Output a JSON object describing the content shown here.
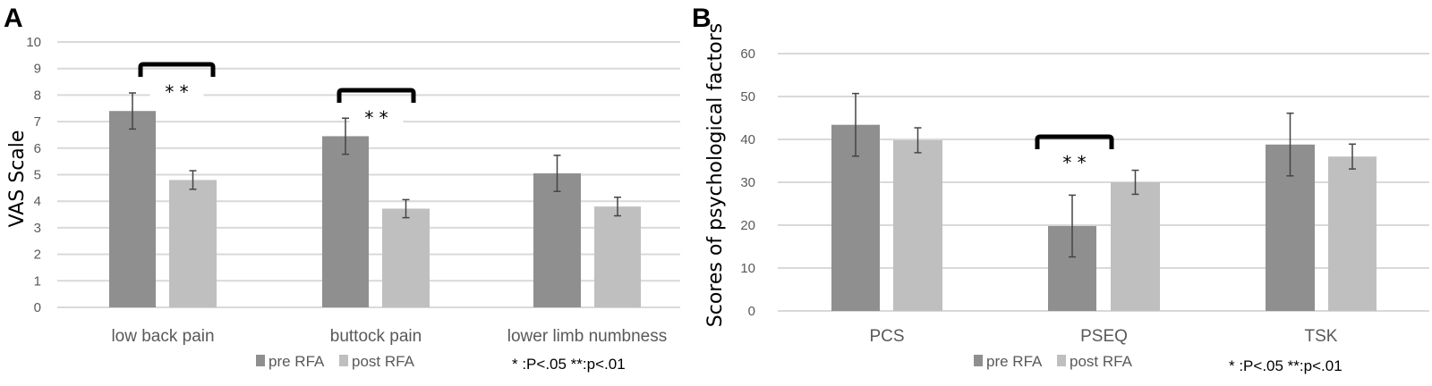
{
  "chart_data": [
    {
      "type": "bar",
      "panel_label": "A",
      "ylabel": "VAS  Scale",
      "xlabel": "",
      "ylim": [
        0,
        10
      ],
      "yticks": [
        "0",
        "1",
        "2",
        "3",
        "4",
        "5",
        "6",
        "7",
        "8",
        "9",
        "10"
      ],
      "grid": true,
      "legend_placement": "bottom",
      "categories": [
        "low back pain",
        "buttock pain",
        "lower limb numbness"
      ],
      "series": [
        {
          "name": "pre RFA",
          "color": "#8f8f8f",
          "values": [
            7.4,
            6.45,
            5.05
          ],
          "error": [
            0.68,
            0.68,
            0.68
          ]
        },
        {
          "name": "post RFA",
          "color": "#bfbfbf",
          "values": [
            4.8,
            3.72,
            3.8
          ],
          "error": [
            0.35,
            0.34,
            0.35
          ]
        }
      ],
      "significance": [
        {
          "category": "low back pain",
          "label": "* *"
        },
        {
          "category": "buttock pain",
          "label": "* *"
        }
      ],
      "note": "* :P<.05  **:p<.01"
    },
    {
      "type": "bar",
      "panel_label": "B",
      "ylabel": "Scores of psychological factors",
      "xlabel": "",
      "ylim": [
        0,
        60
      ],
      "yticks": [
        "0",
        "10",
        "20",
        "30",
        "40",
        "50",
        "60"
      ],
      "grid": true,
      "legend_placement": "bottom",
      "categories": [
        "PCS",
        "PSEQ",
        "TSK"
      ],
      "series": [
        {
          "name": "pre RFA",
          "color": "#8f8f8f",
          "values": [
            43.4,
            19.8,
            38.8
          ],
          "error": [
            7.3,
            7.2,
            7.3
          ]
        },
        {
          "name": "post RFA",
          "color": "#bfbfbf",
          "values": [
            39.8,
            30.0,
            36.0
          ],
          "error": [
            2.9,
            2.8,
            2.9
          ]
        }
      ],
      "significance": [
        {
          "category": "PSEQ",
          "label": "* *"
        }
      ],
      "note": "* :P<.05  **:p<.01"
    }
  ]
}
